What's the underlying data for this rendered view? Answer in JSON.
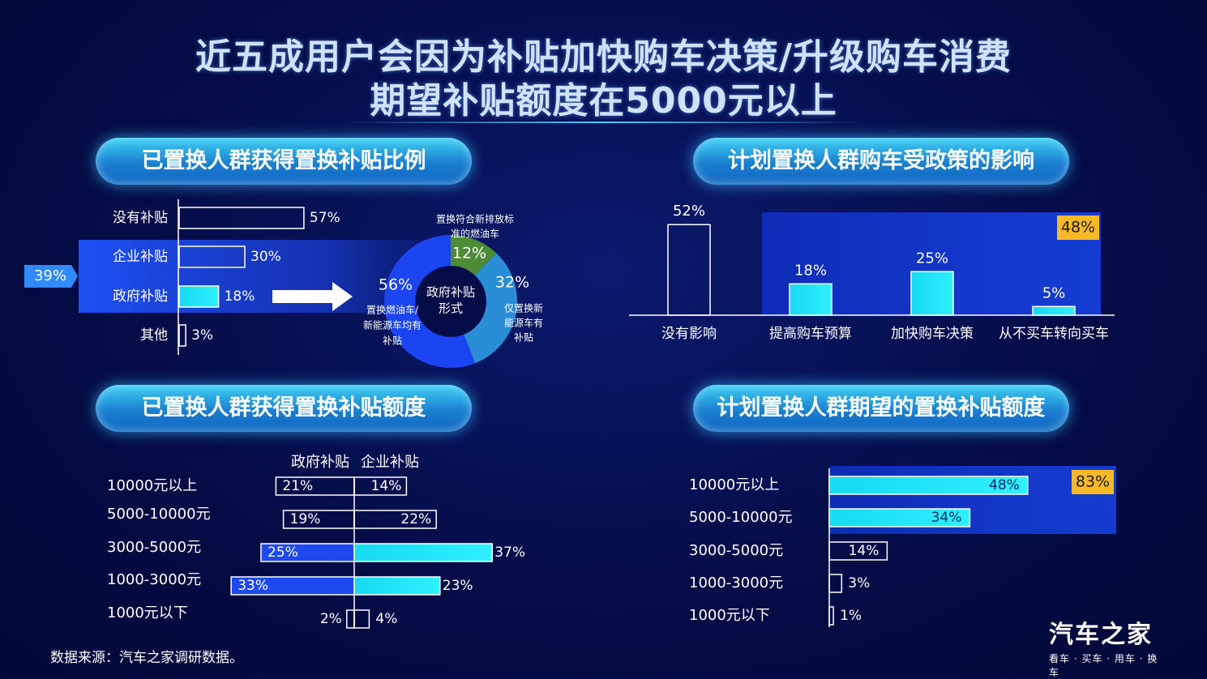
{
  "title_line1": "近五成用户会因为补贴加快购车决策/升级购车消费",
  "title_line2": "期望补贴额度在5000元以上",
  "section1_title": "已置换人群获得置换补贴比例",
  "section2_title": "计划置换人群购车受政策的影响",
  "section3_title": "已置换人群获得置换补贴额度",
  "section4_title": "计划置换人群期望的置换补贴额度",
  "source": "数据来源：汽车之家调研数据。",
  "logo": {
    "name": "汽车之家",
    "slogan": "看车 · 买车 · 用车 · 换车"
  },
  "colors": {
    "accent_cyan": "#2ff0ff",
    "accent_blue": "#1f49f0",
    "highlight_yellow": "#f7b928",
    "donut_green": "#4d8b36"
  },
  "chart_data": [
    {
      "type": "bar",
      "orientation": "horizontal",
      "categories": [
        "没有补贴",
        "企业补贴",
        "政府补贴",
        "其他"
      ],
      "values": [
        57,
        30,
        18,
        3
      ],
      "value_labels": [
        "57%",
        "30%",
        "18%",
        "3%"
      ],
      "callout": "39%"
    },
    {
      "type": "pie",
      "center_label": "政府补贴形式",
      "slices": [
        {
          "label": "置换符合新排放标准的燃油车",
          "value": 12,
          "value_label": "12%",
          "color": "#4d8b36"
        },
        {
          "label": "仅置换新能源车有补贴",
          "value": 32,
          "value_label": "32%",
          "color": "#2a8ed6"
        },
        {
          "label": "置换燃油车/新能源车均有补贴",
          "value": 56,
          "value_label": "56%",
          "color": "#1b45f0"
        }
      ]
    },
    {
      "type": "bar",
      "categories": [
        "没有影响",
        "提高购车预算",
        "加快购车决策",
        "从不买车转向买车"
      ],
      "values": [
        52,
        18,
        25,
        5
      ],
      "value_labels": [
        "52%",
        "18%",
        "25%",
        "5%"
      ],
      "callout": "48%"
    },
    {
      "type": "bar",
      "orientation": "horizontal-diverging",
      "categories": [
        "10000元以上",
        "5000-10000元",
        "3000-5000元",
        "1000-3000元",
        "1000元以下"
      ],
      "series": [
        {
          "name": "政府补贴",
          "values": [
            21,
            19,
            25,
            33,
            2
          ],
          "value_labels": [
            "21%",
            "19%",
            "25%",
            "33%",
            "2%"
          ]
        },
        {
          "name": "企业补贴",
          "values": [
            14,
            22,
            37,
            23,
            4
          ],
          "value_labels": [
            "14%",
            "22%",
            "37%",
            "23%",
            "4%"
          ]
        }
      ]
    },
    {
      "type": "bar",
      "orientation": "horizontal",
      "categories": [
        "10000元以上",
        "5000-10000元",
        "3000-5000元",
        "1000-3000元",
        "1000元以下"
      ],
      "values": [
        48,
        34,
        14,
        3,
        1
      ],
      "value_labels": [
        "48%",
        "34%",
        "14%",
        "3%",
        "1%"
      ],
      "callout": "83%"
    }
  ]
}
